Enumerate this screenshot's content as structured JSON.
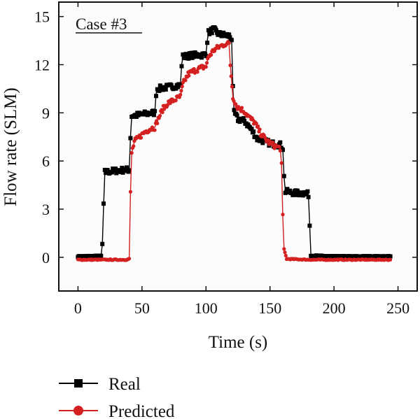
{
  "chart_data": {
    "type": "line",
    "annotation": "Case #3",
    "xlabel": "Time (s)",
    "ylabel": "Flow rate (SLM)",
    "xlim": [
      -15,
      265
    ],
    "ylim": [
      -2.1,
      15.9
    ],
    "xticks": [
      0,
      50,
      100,
      150,
      200,
      250
    ],
    "yticks": [
      0,
      3,
      6,
      9,
      12,
      15
    ],
    "xtick_labels": [
      "0",
      "50",
      "100",
      "150",
      "200",
      "250"
    ],
    "ytick_labels": [
      "0",
      "3",
      "6",
      "9",
      "12",
      "15"
    ],
    "legend_position": "bottom-left, below plot",
    "series": [
      {
        "name": "Real",
        "color": "#000000",
        "marker": "square",
        "points": [
          [
            0,
            0.05
          ],
          [
            18,
            0.08
          ],
          [
            19,
            0.8
          ],
          [
            20,
            3.2
          ],
          [
            21,
            5.3
          ],
          [
            30,
            5.4
          ],
          [
            38,
            5.45
          ],
          [
            40,
            5.45
          ],
          [
            41,
            7.5
          ],
          [
            42,
            8.8
          ],
          [
            50,
            8.9
          ],
          [
            58,
            9.0
          ],
          [
            60,
            9.0
          ],
          [
            61,
            10.2
          ],
          [
            62,
            10.5
          ],
          [
            70,
            10.6
          ],
          [
            78,
            10.7
          ],
          [
            80,
            10.7
          ],
          [
            81,
            12.0
          ],
          [
            82,
            12.5
          ],
          [
            90,
            12.6
          ],
          [
            98,
            12.6
          ],
          [
            100,
            12.7
          ],
          [
            101,
            13.5
          ],
          [
            102,
            14.0
          ],
          [
            106,
            14.2
          ],
          [
            110,
            13.9
          ],
          [
            118,
            13.8
          ],
          [
            120,
            13.6
          ],
          [
            121,
            10.5
          ],
          [
            122,
            9.0
          ],
          [
            125,
            8.6
          ],
          [
            130,
            8.5
          ],
          [
            135,
            8.0
          ],
          [
            140,
            7.4
          ],
          [
            150,
            7.1
          ],
          [
            158,
            7.0
          ],
          [
            160,
            6.8
          ],
          [
            161,
            5.0
          ],
          [
            162,
            4.1
          ],
          [
            170,
            4.0
          ],
          [
            178,
            4.0
          ],
          [
            180,
            3.9
          ],
          [
            181,
            2.0
          ],
          [
            182,
            0.1
          ],
          [
            200,
            0.05
          ],
          [
            244,
            0.05
          ]
        ]
      },
      {
        "name": "Predicted",
        "color": "#d42020",
        "marker": "circle",
        "points": [
          [
            0,
            -0.15
          ],
          [
            20,
            -0.15
          ],
          [
            38,
            -0.15
          ],
          [
            40,
            -0.1
          ],
          [
            41,
            4.0
          ],
          [
            42,
            6.5
          ],
          [
            44,
            7.2
          ],
          [
            48,
            7.5
          ],
          [
            52,
            7.8
          ],
          [
            56,
            8.0
          ],
          [
            60,
            8.1
          ],
          [
            62,
            8.5
          ],
          [
            66,
            9.2
          ],
          [
            70,
            9.6
          ],
          [
            75,
            9.8
          ],
          [
            80,
            10.0
          ],
          [
            82,
            10.8
          ],
          [
            86,
            11.4
          ],
          [
            90,
            11.6
          ],
          [
            96,
            11.8
          ],
          [
            100,
            11.9
          ],
          [
            102,
            12.5
          ],
          [
            106,
            12.9
          ],
          [
            110,
            13.1
          ],
          [
            115,
            13.3
          ],
          [
            118,
            13.3
          ],
          [
            119,
            12.0
          ],
          [
            121,
            10.0
          ],
          [
            124,
            9.4
          ],
          [
            130,
            9.1
          ],
          [
            134,
            8.7
          ],
          [
            138,
            8.4
          ],
          [
            142,
            7.8
          ],
          [
            146,
            7.4
          ],
          [
            150,
            7.1
          ],
          [
            155,
            6.9
          ],
          [
            158,
            6.8
          ],
          [
            159,
            5.8
          ],
          [
            160,
            2.5
          ],
          [
            161,
            0.5
          ],
          [
            163,
            -0.1
          ],
          [
            180,
            -0.15
          ],
          [
            244,
            -0.15
          ]
        ]
      }
    ]
  }
}
